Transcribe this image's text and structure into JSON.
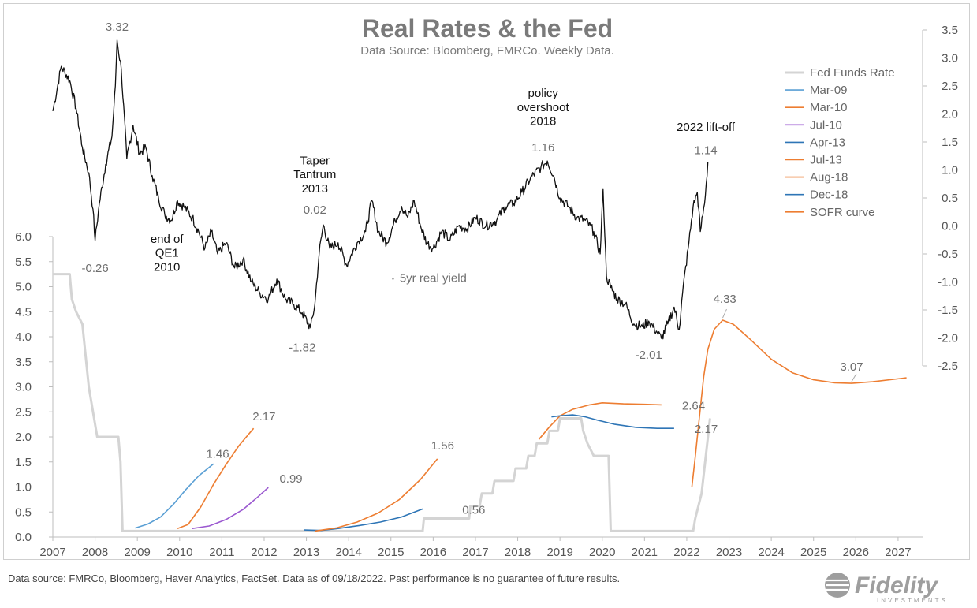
{
  "title": "Real Rates & the Fed",
  "subtitle": "Data Source: Bloomberg, FMRCo. Weekly Data.",
  "footer": "Data source: FMRCo, Bloomberg, Haver Analytics, FactSet. Data as of 09/18/2022. Past performance is no guarantee of future results.",
  "logo": {
    "name": "Fidelity",
    "sub": "INVESTMENTS"
  },
  "colors": {
    "fed": "#d4d4d4",
    "real": "#111111",
    "mar09": "#5a9fd4",
    "orange": "#ed7d31",
    "jul10": "#9b59d0",
    "blue": "#2e75b6"
  },
  "chart_data": {
    "type": "line",
    "xlim": [
      2007,
      2027.3
    ],
    "x_ticks": [
      "2007",
      "2008",
      "2009",
      "2010",
      "2011",
      "2012",
      "2013",
      "2014",
      "2015",
      "2016",
      "2017",
      "2018",
      "2019",
      "2020",
      "2021",
      "2022",
      "2023",
      "2024",
      "2025",
      "2026",
      "2027"
    ],
    "left_axis": {
      "ylim": [
        0,
        6
      ],
      "ticks": [
        "0.0",
        "0.5",
        "1.0",
        "1.5",
        "2.0",
        "2.5",
        "3.0",
        "3.5",
        "4.0",
        "4.5",
        "5.0",
        "5.5",
        "6.0"
      ]
    },
    "right_axis": {
      "ylim": [
        -2.5,
        3.5
      ],
      "ticks": [
        "3.5",
        "3.0",
        "2.5",
        "2.0",
        "1.5",
        "1.0",
        "0.5",
        "0.0",
        "-0.5",
        "-1.0",
        "-1.5",
        "-2.0",
        "-2.5"
      ]
    },
    "legend": [
      "Fed Funds Rate",
      "Mar-09",
      "Mar-10",
      "Jul-10",
      "Apr-13",
      "Jul-13",
      "Aug-18",
      "Dec-18",
      "SOFR curve"
    ],
    "series": [
      {
        "name": "Fed Funds Rate",
        "axis": "left",
        "color": "#d4d4d4",
        "step": true,
        "points": [
          [
            2007.0,
            5.25
          ],
          [
            2007.4,
            5.25
          ],
          [
            2007.45,
            4.75
          ],
          [
            2007.55,
            4.5
          ],
          [
            2007.7,
            4.25
          ],
          [
            2007.85,
            3.0
          ],
          [
            2008.0,
            2.25
          ],
          [
            2008.05,
            2.0
          ],
          [
            2008.55,
            2.0
          ],
          [
            2008.6,
            1.5
          ],
          [
            2008.65,
            0.12
          ],
          [
            2015.75,
            0.12
          ],
          [
            2015.78,
            0.37
          ],
          [
            2016.85,
            0.37
          ],
          [
            2016.88,
            0.62
          ],
          [
            2017.1,
            0.62
          ],
          [
            2017.15,
            0.87
          ],
          [
            2017.4,
            0.87
          ],
          [
            2017.45,
            1.12
          ],
          [
            2017.9,
            1.12
          ],
          [
            2017.95,
            1.37
          ],
          [
            2018.2,
            1.37
          ],
          [
            2018.25,
            1.62
          ],
          [
            2018.4,
            1.62
          ],
          [
            2018.45,
            1.87
          ],
          [
            2018.7,
            1.87
          ],
          [
            2018.75,
            2.12
          ],
          [
            2018.95,
            2.12
          ],
          [
            2019.0,
            2.37
          ],
          [
            2019.5,
            2.37
          ],
          [
            2019.55,
            2.12
          ],
          [
            2019.65,
            1.87
          ],
          [
            2019.8,
            1.62
          ],
          [
            2020.15,
            1.62
          ],
          [
            2020.2,
            0.12
          ],
          [
            2022.15,
            0.12
          ],
          [
            2022.2,
            0.37
          ],
          [
            2022.35,
            0.87
          ],
          [
            2022.45,
            1.62
          ],
          [
            2022.55,
            2.37
          ]
        ]
      },
      {
        "name": "5yr real yield",
        "axis": "right",
        "color": "#111111",
        "points": [
          [
            2007.0,
            2.05
          ],
          [
            2007.2,
            2.85
          ],
          [
            2007.4,
            2.6
          ],
          [
            2007.55,
            2.1
          ],
          [
            2007.7,
            1.4
          ],
          [
            2007.85,
            0.95
          ],
          [
            2007.95,
            0.3
          ],
          [
            2008.0,
            -0.26
          ],
          [
            2008.1,
            0.4
          ],
          [
            2008.25,
            1.1
          ],
          [
            2008.4,
            1.6
          ],
          [
            2008.48,
            2.5
          ],
          [
            2008.52,
            3.32
          ],
          [
            2008.62,
            2.8
          ],
          [
            2008.75,
            1.2
          ],
          [
            2008.9,
            1.8
          ],
          [
            2009.05,
            1.3
          ],
          [
            2009.2,
            1.4
          ],
          [
            2009.35,
            0.9
          ],
          [
            2009.5,
            0.5
          ],
          [
            2009.65,
            0.2
          ],
          [
            2009.8,
            0.1
          ],
          [
            2009.95,
            0.45
          ],
          [
            2010.1,
            0.35
          ],
          [
            2010.3,
            0.15
          ],
          [
            2010.45,
            -0.1
          ],
          [
            2010.6,
            -0.4
          ],
          [
            2010.75,
            -0.1
          ],
          [
            2010.9,
            -0.5
          ],
          [
            2011.1,
            -0.3
          ],
          [
            2011.3,
            -0.75
          ],
          [
            2011.5,
            -0.6
          ],
          [
            2011.7,
            -1.0
          ],
          [
            2011.9,
            -1.2
          ],
          [
            2012.1,
            -1.3
          ],
          [
            2012.3,
            -0.95
          ],
          [
            2012.5,
            -1.3
          ],
          [
            2012.7,
            -1.4
          ],
          [
            2012.9,
            -1.55
          ],
          [
            2013.1,
            -1.82
          ],
          [
            2013.2,
            -1.4
          ],
          [
            2013.3,
            -0.5
          ],
          [
            2013.4,
            0.02
          ],
          [
            2013.55,
            -0.4
          ],
          [
            2013.75,
            -0.3
          ],
          [
            2013.95,
            -0.7
          ],
          [
            2014.2,
            -0.3
          ],
          [
            2014.4,
            -0.1
          ],
          [
            2014.55,
            0.45
          ],
          [
            2014.7,
            -0.1
          ],
          [
            2014.9,
            -0.3
          ],
          [
            2015.1,
            0.1
          ],
          [
            2015.25,
            0.35
          ],
          [
            2015.4,
            0.15
          ],
          [
            2015.55,
            0.45
          ],
          [
            2015.7,
            0.0
          ],
          [
            2015.85,
            -0.3
          ],
          [
            2016.0,
            -0.4
          ],
          [
            2016.2,
            -0.1
          ],
          [
            2016.4,
            -0.25
          ],
          [
            2016.6,
            0.0
          ],
          [
            2016.8,
            -0.05
          ],
          [
            2017.0,
            0.15
          ],
          [
            2017.25,
            0.0
          ],
          [
            2017.5,
            0.1
          ],
          [
            2017.7,
            0.35
          ],
          [
            2017.9,
            0.4
          ],
          [
            2018.1,
            0.6
          ],
          [
            2018.3,
            0.85
          ],
          [
            2018.55,
            1.05
          ],
          [
            2018.7,
            1.16
          ],
          [
            2018.85,
            0.9
          ],
          [
            2019.0,
            0.5
          ],
          [
            2019.2,
            0.35
          ],
          [
            2019.4,
            0.15
          ],
          [
            2019.6,
            0.1
          ],
          [
            2019.8,
            -0.1
          ],
          [
            2019.95,
            -0.5
          ],
          [
            2020.02,
            0.65
          ],
          [
            2020.1,
            -0.9
          ],
          [
            2020.2,
            -1.1
          ],
          [
            2020.35,
            -1.3
          ],
          [
            2020.55,
            -1.4
          ],
          [
            2020.75,
            -1.75
          ],
          [
            2020.95,
            -1.8
          ],
          [
            2021.1,
            -1.7
          ],
          [
            2021.3,
            -1.9
          ],
          [
            2021.4,
            -2.01
          ],
          [
            2021.55,
            -1.75
          ],
          [
            2021.7,
            -1.45
          ],
          [
            2021.82,
            -1.85
          ],
          [
            2021.9,
            -1.2
          ],
          [
            2022.05,
            -0.3
          ],
          [
            2022.15,
            0.35
          ],
          [
            2022.25,
            0.6
          ],
          [
            2022.32,
            -0.1
          ],
          [
            2022.42,
            0.4
          ],
          [
            2022.5,
            1.14
          ]
        ]
      },
      {
        "name": "Mar-09",
        "axis": "left",
        "color": "#5a9fd4",
        "points": [
          [
            2008.95,
            0.18
          ],
          [
            2009.25,
            0.26
          ],
          [
            2009.55,
            0.4
          ],
          [
            2009.85,
            0.65
          ],
          [
            2010.15,
            0.95
          ],
          [
            2010.45,
            1.22
          ],
          [
            2010.8,
            1.46
          ]
        ]
      },
      {
        "name": "Mar-10",
        "axis": "left",
        "color": "#ed7d31",
        "points": [
          [
            2009.95,
            0.17
          ],
          [
            2010.2,
            0.25
          ],
          [
            2010.5,
            0.6
          ],
          [
            2010.8,
            1.05
          ],
          [
            2011.1,
            1.45
          ],
          [
            2011.4,
            1.82
          ],
          [
            2011.75,
            2.17
          ]
        ]
      },
      {
        "name": "Jul-10",
        "axis": "left",
        "color": "#9b59d0",
        "points": [
          [
            2010.3,
            0.17
          ],
          [
            2010.7,
            0.22
          ],
          [
            2011.1,
            0.35
          ],
          [
            2011.5,
            0.55
          ],
          [
            2011.85,
            0.8
          ],
          [
            2012.1,
            0.99
          ]
        ]
      },
      {
        "name": "Apr-13",
        "axis": "left",
        "color": "#2e75b6",
        "points": [
          [
            2012.95,
            0.14
          ],
          [
            2013.35,
            0.13
          ],
          [
            2013.75,
            0.17
          ],
          [
            2014.25,
            0.23
          ],
          [
            2014.75,
            0.3
          ],
          [
            2015.25,
            0.4
          ],
          [
            2015.75,
            0.56
          ]
        ]
      },
      {
        "name": "Jul-13",
        "axis": "left",
        "color": "#ed7d31",
        "points": [
          [
            2013.2,
            0.12
          ],
          [
            2013.7,
            0.18
          ],
          [
            2014.2,
            0.3
          ],
          [
            2014.7,
            0.48
          ],
          [
            2015.2,
            0.75
          ],
          [
            2015.7,
            1.15
          ],
          [
            2016.1,
            1.56
          ]
        ]
      },
      {
        "name": "Aug-18",
        "axis": "left",
        "color": "#ed7d31",
        "points": [
          [
            2018.5,
            1.95
          ],
          [
            2018.75,
            2.2
          ],
          [
            2019.0,
            2.42
          ],
          [
            2019.3,
            2.55
          ],
          [
            2019.7,
            2.64
          ],
          [
            2020.0,
            2.68
          ],
          [
            2020.5,
            2.66
          ],
          [
            2021.0,
            2.65
          ],
          [
            2021.4,
            2.64
          ]
        ]
      },
      {
        "name": "Dec-18",
        "axis": "left",
        "color": "#2e75b6",
        "points": [
          [
            2018.8,
            2.4
          ],
          [
            2019.0,
            2.42
          ],
          [
            2019.3,
            2.44
          ],
          [
            2019.6,
            2.4
          ],
          [
            2019.9,
            2.33
          ],
          [
            2020.3,
            2.25
          ],
          [
            2020.8,
            2.19
          ],
          [
            2021.3,
            2.17
          ],
          [
            2021.7,
            2.17
          ]
        ]
      },
      {
        "name": "SOFR curve",
        "axis": "left",
        "color": "#ed7d31",
        "points": [
          [
            2022.12,
            1.0
          ],
          [
            2022.2,
            1.6
          ],
          [
            2022.3,
            2.4
          ],
          [
            2022.4,
            3.2
          ],
          [
            2022.5,
            3.75
          ],
          [
            2022.65,
            4.15
          ],
          [
            2022.85,
            4.33
          ],
          [
            2023.1,
            4.25
          ],
          [
            2023.5,
            3.95
          ],
          [
            2024.0,
            3.55
          ],
          [
            2024.5,
            3.28
          ],
          [
            2025.0,
            3.14
          ],
          [
            2025.5,
            3.08
          ],
          [
            2025.9,
            3.07
          ],
          [
            2026.4,
            3.1
          ],
          [
            2027.2,
            3.18
          ]
        ]
      }
    ],
    "annotations": [
      {
        "text": "3.32",
        "x": 2008.52,
        "y": 3.32,
        "axis": "right",
        "style": "gray"
      },
      {
        "text": "-0.26",
        "x": 2008.0,
        "y": -0.26,
        "axis": "right",
        "style": "gray"
      },
      {
        "text": "end of",
        "x": 2009.7,
        "y": -0.3,
        "axis": "right",
        "style": "black"
      },
      {
        "text": "QE1",
        "x": 2009.7,
        "y": -0.55,
        "axis": "right",
        "style": "black"
      },
      {
        "text": "2010",
        "x": 2009.7,
        "y": -0.8,
        "axis": "right",
        "style": "black"
      },
      {
        "text": "-1.82",
        "x": 2012.9,
        "y": -1.82,
        "axis": "right",
        "style": "gray"
      },
      {
        "text": "Taper",
        "x": 2013.2,
        "y": 1.1,
        "axis": "right",
        "style": "black"
      },
      {
        "text": "Tantrum",
        "x": 2013.2,
        "y": 0.85,
        "axis": "right",
        "style": "black"
      },
      {
        "text": "2013",
        "x": 2013.2,
        "y": 0.6,
        "axis": "right",
        "style": "black"
      },
      {
        "text": "0.02",
        "x": 2013.2,
        "y": 0.02,
        "axis": "right",
        "style": "gray"
      },
      {
        "text": "policy",
        "x": 2018.6,
        "y": 2.3,
        "axis": "right",
        "style": "black"
      },
      {
        "text": "overshoot",
        "x": 2018.6,
        "y": 2.05,
        "axis": "right",
        "style": "black"
      },
      {
        "text": "2018",
        "x": 2018.6,
        "y": 1.8,
        "axis": "right",
        "style": "black"
      },
      {
        "text": "1.16",
        "x": 2018.6,
        "y": 1.16,
        "axis": "right",
        "style": "gray"
      },
      {
        "text": "-2.01",
        "x": 2021.1,
        "y": -2.01,
        "axis": "right",
        "style": "gray"
      },
      {
        "text": "2022 lift-off",
        "x": 2022.45,
        "y": 1.7,
        "axis": "right",
        "style": "black"
      },
      {
        "text": "1.14",
        "x": 2022.45,
        "y": 1.14,
        "axis": "right",
        "style": "gray"
      },
      {
        "text": "5yr real yield",
        "x": 2016.0,
        "y": -1.0,
        "axis": "right",
        "style": "gray"
      },
      {
        "text": "1.46",
        "x": 2010.6,
        "y": 1.46,
        "axis": "left",
        "style": "gray"
      },
      {
        "text": "2.17",
        "x": 2011.7,
        "y": 2.17,
        "axis": "left",
        "style": "gray"
      },
      {
        "text": "0.99",
        "x": 2012.3,
        "y": 0.99,
        "axis": "left",
        "style": "gray"
      },
      {
        "text": "1.56",
        "x": 2016.0,
        "y": 1.56,
        "axis": "left",
        "style": "gray"
      },
      {
        "text": "0.56",
        "x": 2016.4,
        "y": 0.56,
        "axis": "left",
        "style": "gray"
      },
      {
        "text": "2.64",
        "x": 2021.6,
        "y": 2.64,
        "axis": "left",
        "style": "gray"
      },
      {
        "text": "2.17",
        "x": 2021.9,
        "y": 2.17,
        "axis": "left",
        "style": "gray"
      },
      {
        "text": "4.33",
        "x": 2022.9,
        "y": 4.33,
        "axis": "left",
        "style": "orange"
      },
      {
        "text": "3.07",
        "x": 2025.9,
        "y": 3.07,
        "axis": "left",
        "style": "orange"
      }
    ]
  }
}
